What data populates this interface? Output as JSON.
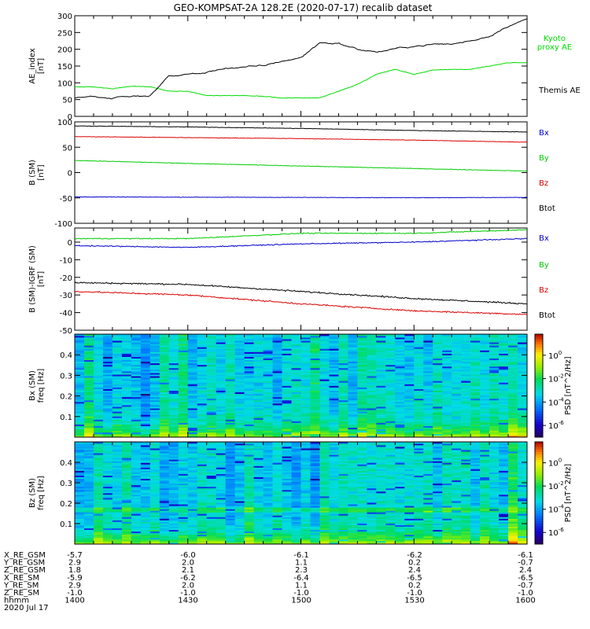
{
  "title": "GEO-KOMPSAT-2A 128.2E (2020-07-17) recalib dataset",
  "chart_data": [
    {
      "type": "line",
      "ylabel": [
        "AE_index",
        "[nT]"
      ],
      "ylim": [
        0,
        300
      ],
      "yticks": [
        0,
        50,
        100,
        150,
        200,
        250,
        300
      ],
      "x": [
        "1400",
        "1405",
        "1410",
        "1415",
        "1420",
        "1425",
        "1430",
        "1435",
        "1440",
        "1445",
        "1450",
        "1455",
        "1500",
        "1505",
        "1510",
        "1515",
        "1520",
        "1525",
        "1530",
        "1535",
        "1540",
        "1545",
        "1550",
        "1555",
        "1600"
      ],
      "series": [
        {
          "name": "Kyoto proxy AE",
          "color": "#00dd00",
          "values": [
            88,
            88,
            82,
            90,
            88,
            75,
            75,
            62,
            62,
            62,
            60,
            55,
            55,
            55,
            75,
            95,
            125,
            140,
            125,
            138,
            140,
            140,
            150,
            160,
            160
          ]
        },
        {
          "name": "Themis AE",
          "color": "#000000",
          "values": [
            55,
            60,
            55,
            58,
            63,
            120,
            125,
            130,
            145,
            145,
            150,
            165,
            175,
            220,
            218,
            200,
            192,
            200,
            210,
            215,
            215,
            225,
            240,
            272,
            290
          ]
        }
      ],
      "legend_placement": "right"
    },
    {
      "type": "line",
      "ylabel": [
        "B (SM)",
        "[nT]"
      ],
      "ylim": [
        -100,
        100
      ],
      "yticks": [
        -100,
        -50,
        0,
        50,
        100
      ],
      "x": [
        "1400",
        "1430",
        "1500",
        "1530",
        "1600"
      ],
      "series": [
        {
          "name": "Bx",
          "color": "#0000cc",
          "values": [
            -48,
            -48.5,
            -49,
            -49.5,
            -49
          ]
        },
        {
          "name": "By",
          "color": "#00cc00",
          "values": [
            24,
            18,
            13,
            8,
            3
          ]
        },
        {
          "name": "Bz",
          "color": "#dd0000",
          "values": [
            71,
            69,
            67,
            64,
            60
          ]
        },
        {
          "name": "Btot",
          "color": "#000000",
          "values": [
            92,
            90,
            87,
            83,
            80
          ]
        }
      ],
      "legend_placement": "right"
    },
    {
      "type": "line",
      "ylabel": [
        "B (SM)-IGRF (SM)",
        "[nT]"
      ],
      "ylim": [
        -50,
        8
      ],
      "yticks": [
        -50,
        -40,
        -30,
        -20,
        -10,
        0
      ],
      "x": [
        "1400",
        "1430",
        "1500",
        "1530",
        "1600"
      ],
      "series": [
        {
          "name": "Bx",
          "color": "#0000cc",
          "values": [
            -2,
            -3,
            -1,
            0,
            2
          ]
        },
        {
          "name": "By",
          "color": "#00cc00",
          "values": [
            2,
            2,
            5,
            5,
            7
          ]
        },
        {
          "name": "Bz",
          "color": "#dd0000",
          "values": [
            -28,
            -30,
            -35,
            -39,
            -41
          ]
        },
        {
          "name": "Btot",
          "color": "#000000",
          "values": [
            -23,
            -24,
            -28,
            -32,
            -35
          ]
        }
      ],
      "legend_placement": "right"
    },
    {
      "type": "heatmap",
      "ylabel": [
        "Bx (SM)",
        "freq [Hz]"
      ],
      "ylim": [
        0,
        0.5
      ],
      "yticks": [
        0.1,
        0.2,
        0.3,
        0.4
      ],
      "colorbar": {
        "label": "PSD [nT^2/Hz]",
        "ticks": [
          "10^0",
          "10^-2",
          "10^-4",
          "10^-6"
        ],
        "range": [
          -7,
          1.8
        ],
        "scale": "log"
      }
    },
    {
      "type": "heatmap",
      "ylabel": [
        "Bz (SM)",
        "freq [Hz]"
      ],
      "ylim": [
        0,
        0.5
      ],
      "yticks": [
        0.1,
        0.2,
        0.3,
        0.4
      ],
      "colorbar": {
        "label": "PSD [nT^2/Hz]",
        "ticks": [
          "10^0",
          "10^-2",
          "10^-4",
          "10^-6"
        ],
        "range": [
          -7,
          1.8
        ],
        "scale": "log"
      }
    }
  ],
  "orbit_table": {
    "rows": [
      {
        "label": "X_RE_GSM",
        "values": [
          "-5.7",
          "-6.0",
          "-6.1",
          "-6.2",
          "-6.1"
        ]
      },
      {
        "label": "Y_RE_GSM",
        "values": [
          "2.9",
          "2.0",
          "1.1",
          "0.2",
          "-0.7"
        ]
      },
      {
        "label": "Z_RE_GSM",
        "values": [
          "1.8",
          "2.1",
          "2.3",
          "2.4",
          "2.4"
        ]
      },
      {
        "label": "X_RE_SM",
        "values": [
          "-5.9",
          "-6.2",
          "-6.4",
          "-6.5",
          "-6.5"
        ]
      },
      {
        "label": "Y_RE_SM",
        "values": [
          "2.9",
          "2.0",
          "1.1",
          "0.2",
          "-0.7"
        ]
      },
      {
        "label": "Z_RE_SM",
        "values": [
          "-1.0",
          "-1.0",
          "-1.0",
          "-1.0",
          "-1.0"
        ]
      },
      {
        "label": "hhmm",
        "values": [
          "1400",
          "1430",
          "1500",
          "1530",
          "1600"
        ]
      }
    ],
    "date": "2020 Jul 17"
  }
}
